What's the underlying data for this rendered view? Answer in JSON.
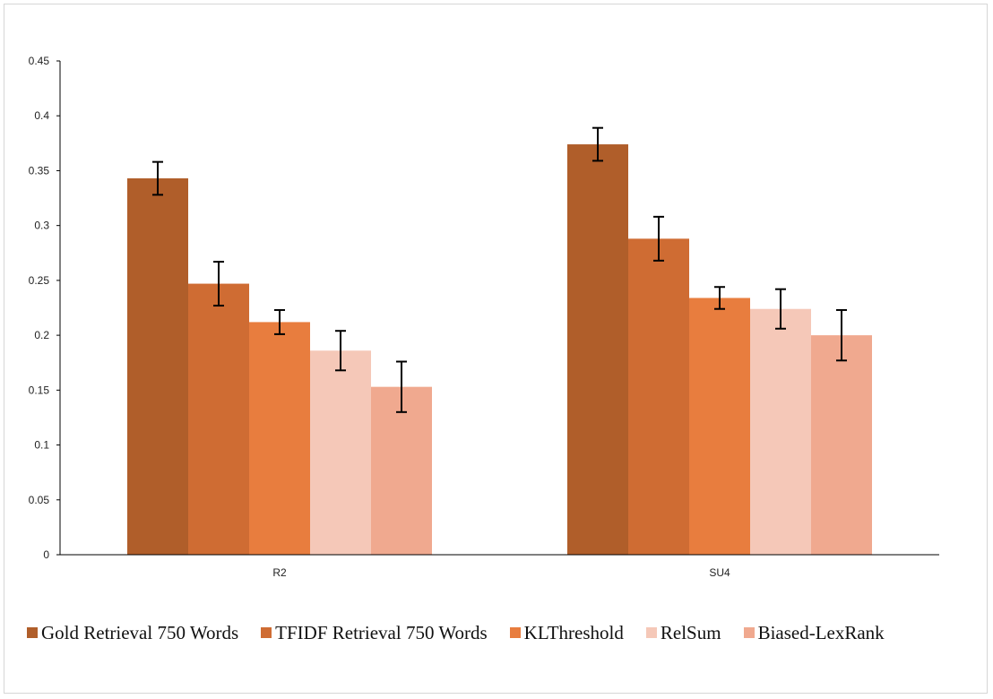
{
  "chart_data": {
    "type": "bar",
    "categories": [
      "R2",
      "SU4"
    ],
    "ylim": [
      0,
      0.45
    ],
    "yticks": [
      "0",
      "0.05",
      "0.1",
      "0.15",
      "0.2",
      "0.25",
      "0.3",
      "0.35",
      "0.4",
      "0.45"
    ],
    "grid": false,
    "legend_position": "bottom",
    "series": [
      {
        "name": "Gold Retrieval 750 Words",
        "color": "#b05e2a",
        "values": [
          0.343,
          0.374
        ],
        "error": [
          0.015,
          0.015
        ]
      },
      {
        "name": "TFIDF Retrieval 750 Words",
        "color": "#cf6c33",
        "values": [
          0.247,
          0.288
        ],
        "error": [
          0.02,
          0.02
        ]
      },
      {
        "name": "KLThreshold",
        "color": "#e87d3e",
        "values": [
          0.212,
          0.234
        ],
        "error": [
          0.011,
          0.01
        ]
      },
      {
        "name": "RelSum",
        "color": "#f5c8b8",
        "values": [
          0.186,
          0.224
        ],
        "error": [
          0.018,
          0.018
        ]
      },
      {
        "name": "Biased-LexRank",
        "color": "#f0a98f",
        "values": [
          0.153,
          0.2
        ],
        "error": [
          0.023,
          0.023
        ]
      }
    ]
  }
}
